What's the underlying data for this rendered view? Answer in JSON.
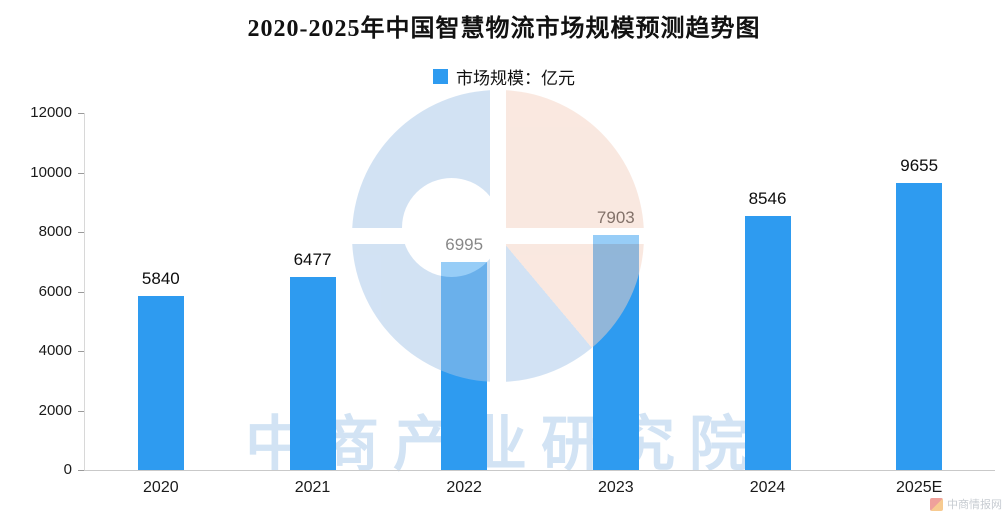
{
  "chart_data": {
    "type": "bar",
    "title": "2020-2025年中国智慧物流市场规模预测趋势图",
    "legend_label": "市场规模：亿元",
    "categories": [
      "2020",
      "2021",
      "2022",
      "2023",
      "2024",
      "2025E"
    ],
    "values": [
      5840,
      6477,
      6995,
      7903,
      8546,
      9655
    ],
    "series": [
      {
        "name": "市场规模：亿元",
        "values": [
          5840,
          6477,
          6995,
          7903,
          8546,
          9655
        ]
      }
    ],
    "xlabel": "",
    "ylabel": "",
    "ylim": [
      0,
      12000
    ],
    "yticks": [
      0,
      2000,
      4000,
      6000,
      8000,
      10000,
      12000
    ],
    "bar_color": "#2E9BF0",
    "grid": false,
    "legend_position": "top"
  },
  "watermark": {
    "brand_text": "中商产业研究院",
    "corner_badge": "中商情报网"
  }
}
